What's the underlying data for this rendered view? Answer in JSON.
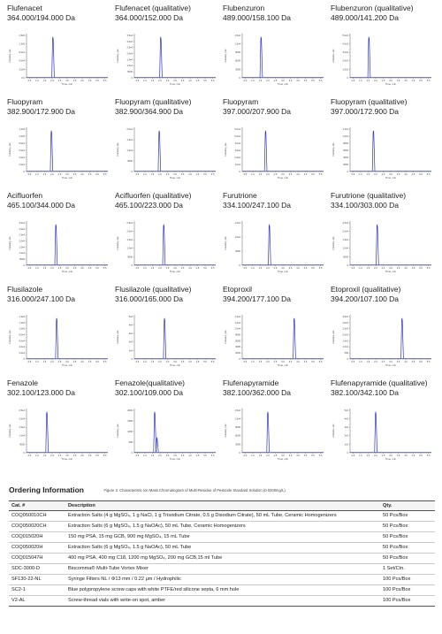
{
  "chromatograms": [
    {
      "name": "Flufenacet",
      "transition": "364.000/194.000 Da",
      "y_ticks": [
        "1.5e5",
        "1.2e5",
        "9.0e4",
        "6.0e4",
        "3.0e4",
        "0.0"
      ],
      "peak_time": 2.05,
      "peak_height": 0.95
    },
    {
      "name": "Flufenacet (qualitative)",
      "transition": "364.000/152.000 Da",
      "y_ticks": [
        "3.5e4",
        "3.0e4",
        "2.5e4",
        "2.0e4",
        "1.5e4",
        "1.0e4",
        "5000",
        "0"
      ],
      "peak_time": 2.05,
      "peak_height": 0.95
    },
    {
      "name": "Flubenzuron",
      "transition": "489.000/158.100 Da",
      "y_ticks": [
        "1.5e4",
        "1.2e4",
        "9000",
        "6000",
        "3000",
        "0"
      ],
      "peak_time": 1.55,
      "peak_height": 0.95
    },
    {
      "name": "Flubenzuron (qualitative)",
      "transition": "489.000/141.200 Da",
      "y_ticks": [
        "5.0e3",
        "4.0e3",
        "3.0e3",
        "2.0e3",
        "1.0e3",
        "0"
      ],
      "peak_time": 1.55,
      "peak_height": 0.95
    },
    {
      "name": "Fluopyram",
      "transition": "382.900/172.900 Da",
      "y_ticks": [
        "1.2e5",
        "1.0e5",
        "8.0e4",
        "6.0e4",
        "4.0e4",
        "2.0e4",
        "0"
      ],
      "peak_time": 1.95,
      "peak_height": 0.95
    },
    {
      "name": "Fluopyram (qualitative)",
      "transition": "382.900/364.900 Da",
      "y_ticks": [
        "2.0e4",
        "1.5e4",
        "1.0e4",
        "5000",
        "0"
      ],
      "peak_time": 1.95,
      "peak_height": 0.95
    },
    {
      "name": "Fluopyram",
      "transition": "397.000/207.900 Da",
      "y_ticks": [
        "6.0e4",
        "5.0e4",
        "4.0e4",
        "3.0e4",
        "2.0e4",
        "1.0e4",
        "0"
      ],
      "peak_time": 1.85,
      "peak_height": 0.95
    },
    {
      "name": "Fluopyram (qualitative)",
      "transition": "397.000/172.900 Da",
      "y_ticks": [
        "1.2e4",
        "1.0e4",
        "8000",
        "6000",
        "4000",
        "2000",
        "0"
      ],
      "peak_time": 1.85,
      "peak_height": 0.95
    },
    {
      "name": "Acifluorfen",
      "transition": "465.100/344.000 Da",
      "y_ticks": [
        "3.5e4",
        "3.0e4",
        "2.5e4",
        "2.0e4",
        "1.5e4",
        "1.0e4",
        "5000",
        "0"
      ],
      "peak_time": 2.25,
      "peak_height": 0.95
    },
    {
      "name": "Acifluorfen (qualitative)",
      "transition": "465.100/223.000 Da",
      "y_ticks": [
        "2.5e4",
        "2.0e4",
        "1.5e4",
        "1.0e4",
        "5000",
        "0"
      ],
      "peak_time": 2.25,
      "peak_height": 0.95
    },
    {
      "name": "Furutrione",
      "transition": "334.100/247.100 Da",
      "y_ticks": [
        "1.5e4",
        "1.0e4",
        "5000",
        "0"
      ],
      "peak_time": 2.1,
      "peak_height": 0.95
    },
    {
      "name": "Furutrione (qualitative)",
      "transition": "334.100/303.000 Da",
      "y_ticks": [
        "2.5e4",
        "2.0e4",
        "1.5e4",
        "1.0e4",
        "5000",
        "0"
      ],
      "peak_time": 2.1,
      "peak_height": 0.95
    },
    {
      "name": "Flusilazole",
      "transition": "316.000/247.100 Da",
      "y_ticks": [
        "1.4e5",
        "1.2e5",
        "1.0e5",
        "8.0e4",
        "6.0e4",
        "4.0e4",
        "2.0e4",
        "0"
      ],
      "peak_time": 2.3,
      "peak_height": 0.95
    },
    {
      "name": "Flusilazole (qualitative)",
      "transition": "316.000/165.000 Da",
      "y_ticks": [
        "5e4",
        "4e4",
        "3e4",
        "2e4",
        "1e4",
        "0"
      ],
      "peak_time": 2.3,
      "peak_height": 0.95
    },
    {
      "name": "Etoproxil",
      "transition": "394.200/177.100 Da",
      "y_ticks": [
        "1.4e4",
        "1.2e4",
        "1.0e4",
        "8000",
        "6000",
        "4000",
        "2000",
        "0"
      ],
      "peak_time": 3.75,
      "peak_height": 0.95
    },
    {
      "name": "Etoproxil (qualitative)",
      "transition": "394.200/107.100 Da",
      "y_ticks": [
        "3.5e3",
        "3.0e3",
        "2.5e3",
        "2.0e3",
        "1.5e3",
        "1.0e3",
        "500",
        "0"
      ],
      "peak_time": 3.75,
      "peak_height": 0.95
    },
    {
      "name": "Fenazole",
      "transition": "302.100/123.000 Da",
      "y_ticks": [
        "2.5e4",
        "2.0e4",
        "1.5e4",
        "1.0e4",
        "5000",
        "0"
      ],
      "peak_time": 1.65,
      "peak_height": 0.95
    },
    {
      "name": "Fenazole(qualitative)",
      "transition": "302.100/109.000 Da",
      "y_ticks": [
        "2000",
        "1500",
        "1000",
        "500",
        "0"
      ],
      "peak_time": 1.65,
      "peak_height": 0.95,
      "extra_peak_time": 1.8,
      "extra_peak_height": 0.35
    },
    {
      "name": "Flufenapyramide",
      "transition": "382.100/362.000 Da",
      "y_ticks": [
        "1.5e4",
        "1.2e4",
        "9000",
        "6000",
        "3000",
        "0"
      ],
      "peak_time": 2.0,
      "peak_height": 0.95
    },
    {
      "name": "Flufenapyramide (qualitative)",
      "transition": "382.100/342.100 Da",
      "y_ticks": [
        "5e3",
        "4e3",
        "3e3",
        "2e3",
        "1e3",
        "0"
      ],
      "peak_time": 2.0,
      "peak_height": 0.95
    }
  ],
  "chart_common": {
    "type": "line",
    "xlabel": "Time, min",
    "ylabel": "Intensity, cps",
    "x_ticks": [
      "0.5",
      "1.0",
      "1.5",
      "2.0",
      "2.5",
      "3.0",
      "3.5",
      "4.0",
      "4.5",
      "5.0",
      "5.5"
    ],
    "xlim": [
      0.3,
      5.7
    ],
    "line_color": "#2a35c9",
    "baseline_color": "#2a35c9"
  },
  "ordering": {
    "title": "Ordering Information",
    "caption": "Figure 3. Characteristic Ion Mass Chromatogram of Multi-Residue of Pesticide Standard Solution (0.0200mg/L)",
    "headers": {
      "cat": "Cat. #",
      "desc": "Description",
      "qty": "Qty."
    },
    "rows": [
      {
        "cat": "COQ050010CH",
        "desc": "Extraction Salts (4 g MgSO₄, 1 g NaCl, 1 g Trisodium Citrate, 0.5 g Disodium Citrate), 50 mL Tube, Ceramic Homogenizers",
        "qty": "50 Pcs/Box"
      },
      {
        "cat": "COQ050020CH",
        "desc": "Extraction Salts (6 g MgSO₄, 1.5 g NaOAc), 50 mL Tube, Ceramic Homogenizers",
        "qty": "50 Pcs/Box"
      },
      {
        "cat": "COQ015020H",
        "desc": "150 mg PSA, 15 mg GCB, 900 mg MgSO₄, 15 mL Tube",
        "qty": "50 Pcs/Box"
      },
      {
        "cat": "COQ050020H",
        "desc": "Extraction Salts (6 g MgSO₄, 1.5 g NaOAc), 50 mL Tube",
        "qty": "50 Pcs/Box"
      },
      {
        "cat": "COQ015047H",
        "desc": "400 mg PSA, 400 mg C18, 1200 mg MgSO₄, 200 mg GCB,15 ml Tube",
        "qty": "50 Pcs/Box"
      },
      {
        "cat": "SDC-3000-D",
        "desc": "Biocomma® Multi-Tube Vortex Mixer",
        "qty": "1 Set/Ctn."
      },
      {
        "cat": "SF130-22-NL",
        "desc": "Syringe Filters NL / Φ13 mm / 0.22 μm / Hydrophilic",
        "qty": "100 Pcs/Box"
      },
      {
        "cat": "SC2-1",
        "desc": "Blue polypropylene screw caps with white PTFE/red silicone septa, 6 mm hole",
        "qty": "100 Pcs/Box"
      },
      {
        "cat": "V2-AL",
        "desc": "Screw-thread vials with write-on spot, amber",
        "qty": "100 Pcs/Box"
      }
    ]
  }
}
